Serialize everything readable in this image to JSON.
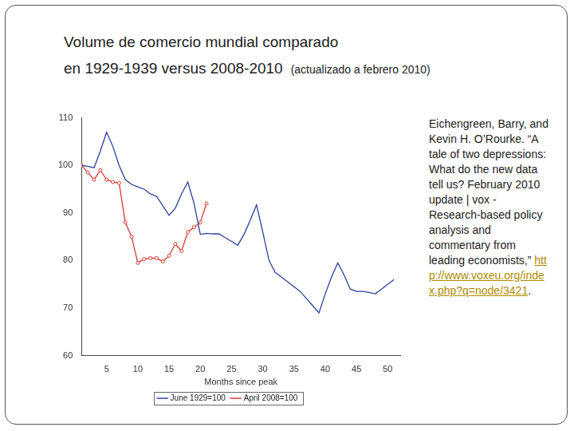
{
  "slide": {
    "title": [
      "Volume de comercio mundial comparado",
      "en 1929-1939 versus 2008-2010"
    ],
    "subtitle": "(actualizado a febrero 2010)",
    "citation": {
      "text": "Eichengreen, Barry, and Kevin H. O’Rourke. “A tale of two depressions: What do the new data tell us? February 2010 update | vox - Research-based policy analysis and commentary from leading economists,” ",
      "link": "http://www.voxeu.org/index.php?q=node/3421",
      "after": "."
    }
  },
  "chart_data": {
    "type": "line",
    "x_label": "Months since peak",
    "xlim": [
      1,
      52
    ],
    "xticks": [
      5,
      10,
      15,
      20,
      25,
      30,
      35,
      40,
      45,
      50
    ],
    "ylim": [
      60,
      110
    ],
    "yticks": [
      60,
      70,
      80,
      90,
      100,
      110
    ],
    "grid": false,
    "legend": "bottom",
    "series": [
      {
        "name": "June 1929=100",
        "color": "#2b3f9e",
        "marker": "none",
        "x": [
          1,
          2,
          3,
          4,
          5,
          6,
          7,
          8,
          9,
          10,
          11,
          12,
          13,
          14,
          15,
          16,
          17,
          18,
          19,
          20,
          21,
          22,
          23,
          24,
          25,
          26,
          27,
          28,
          29,
          30,
          31,
          32,
          33,
          34,
          35,
          36,
          37,
          38,
          39,
          40,
          41,
          42,
          43,
          44,
          45,
          46,
          47,
          48,
          49,
          50,
          51
        ],
        "values": [
          100,
          99.8,
          99.5,
          103,
          107,
          104,
          100,
          97,
          96,
          95.5,
          95,
          94,
          93.5,
          91.5,
          89.5,
          91,
          94,
          96.5,
          92,
          85.5,
          85.7,
          85.6,
          85.6,
          84.8,
          84,
          83.2,
          85.5,
          88.5,
          91.7,
          86,
          80,
          77.5,
          76.5,
          75.5,
          74.5,
          73.5,
          72,
          70.5,
          69,
          73,
          76.5,
          79.5,
          77,
          74,
          73.5,
          73.5,
          73.3,
          73,
          74,
          75,
          76
        ]
      },
      {
        "name": "April 2008=100",
        "color": "#d9382c",
        "marker": "circle",
        "x": [
          1,
          2,
          3,
          4,
          5,
          6,
          7,
          8,
          9,
          10,
          11,
          12,
          13,
          14,
          15,
          16,
          17,
          18,
          19,
          20,
          21
        ],
        "values": [
          100,
          98.5,
          97,
          99,
          97,
          96.5,
          96.3,
          88,
          85,
          79.5,
          80.3,
          80.5,
          80.5,
          79.8,
          81,
          83.5,
          82,
          86,
          87,
          88,
          92
        ]
      }
    ]
  }
}
